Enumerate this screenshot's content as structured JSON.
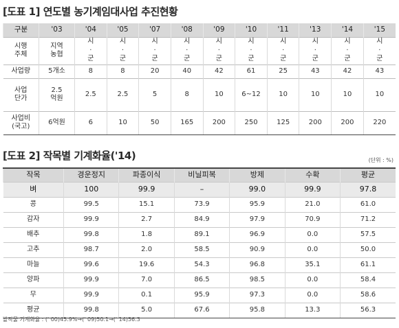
{
  "table1": {
    "title": "[도표 1] 연도별 농기계임대사업 추진현황",
    "corner_header": "구분",
    "years": [
      "'03",
      "'04",
      "'05",
      "'07",
      "'08",
      "'09",
      "'10",
      "'11",
      "'13",
      "'14",
      "'15"
    ],
    "rows": {
      "agent": {
        "label": [
          "시행",
          "주체"
        ],
        "first": [
          "지역",
          "농협"
        ],
        "others": [
          "시",
          "·",
          "군"
        ]
      },
      "amount": {
        "label": "사업량",
        "values": [
          "5개소",
          "8",
          "8",
          "20",
          "40",
          "42",
          "61",
          "25",
          "43",
          "42",
          "43"
        ]
      },
      "unit_price": {
        "label": [
          "사업",
          "단가"
        ],
        "first": [
          "2.5",
          "억원"
        ],
        "values": [
          "2.5",
          "2.5",
          "5",
          "8",
          "10",
          "6~12",
          "10",
          "10",
          "10",
          "10"
        ]
      },
      "cost": {
        "label": [
          "사업비",
          "(국고)"
        ],
        "values": [
          "6억원",
          "6",
          "10",
          "50",
          "165",
          "200",
          "250",
          "125",
          "200",
          "200",
          "220"
        ]
      }
    }
  },
  "table2": {
    "title": "[도표 2] 작목별 기계화율('14)",
    "unit": "(단위 : %)",
    "headers": [
      "작목",
      "경운정지",
      "파종이식",
      "비닐피복",
      "방제",
      "수확",
      "평균"
    ],
    "rows": [
      [
        "벼",
        "100",
        "99.9",
        "–",
        "99.0",
        "99.9",
        "97.8"
      ],
      [
        "콩",
        "99.5",
        "15.1",
        "73.9",
        "95.9",
        "21.0",
        "61.0"
      ],
      [
        "감자",
        "99.9",
        "2.7",
        "84.9",
        "97.9",
        "70.9",
        "71.2"
      ],
      [
        "배추",
        "99.8",
        "1.8",
        "89.1",
        "96.9",
        "0.0",
        "57.5"
      ],
      [
        "고추",
        "98.7",
        "2.0",
        "58.5",
        "90.9",
        "0.0",
        "50.0"
      ],
      [
        "마늘",
        "99.6",
        "19.6",
        "54.3",
        "96.8",
        "35.1",
        "61.1"
      ],
      [
        "양파",
        "99.9",
        "7.0",
        "86.5",
        "98.5",
        "0.0",
        "58.4"
      ],
      [
        "무",
        "99.9",
        "0.1",
        "95.9",
        "97.3",
        "0.0",
        "58.6"
      ],
      [
        "평균",
        "99.8",
        "5.0",
        "67.6",
        "95.8",
        "13.3",
        "56.3"
      ]
    ]
  },
  "footnote": "밭작물 기계화율 : (' 00)45.9%→(' 09)50.1→(' 14)56.3"
}
